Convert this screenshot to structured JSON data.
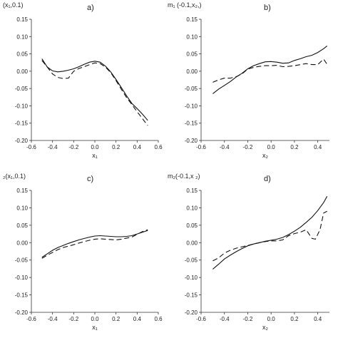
{
  "chart_data": [
    {
      "type": "line",
      "panel_tag": "a)",
      "title": "(x₁,0.1)",
      "xlabel": "x₁",
      "ylabel": "",
      "xlim": [
        -0.6,
        0.6
      ],
      "ylim": [
        -0.2,
        0.15
      ],
      "xticks": [
        "-0.6",
        "-0.4",
        "-0.2",
        "0.0",
        "0.2",
        "0.4",
        "0.6"
      ],
      "yticks": [
        "0.15",
        "0.10",
        "0.05",
        "0.00",
        "-0.05",
        "-0.10",
        "-0.15",
        "-0.20"
      ],
      "grid": false,
      "series": [
        {
          "style": "solid",
          "x": [
            -0.5,
            -0.45,
            -0.4,
            -0.35,
            -0.3,
            -0.25,
            -0.2,
            -0.15,
            -0.1,
            -0.05,
            0.0,
            0.05,
            0.1,
            0.15,
            0.2,
            0.25,
            0.3,
            0.35,
            0.4,
            0.45,
            0.5
          ],
          "y": [
            0.036,
            0.012,
            0.001,
            -0.002,
            0.0,
            0.003,
            0.007,
            0.013,
            0.02,
            0.026,
            0.029,
            0.026,
            0.015,
            -0.002,
            -0.024,
            -0.047,
            -0.071,
            -0.093,
            -0.108,
            -0.124,
            -0.142
          ]
        },
        {
          "style": "dashed",
          "x": [
            -0.5,
            -0.45,
            -0.4,
            -0.35,
            -0.3,
            -0.25,
            -0.2,
            -0.15,
            -0.1,
            -0.05,
            0.0,
            0.05,
            0.1,
            0.15,
            0.2,
            0.25,
            0.3,
            0.35,
            0.4,
            0.45,
            0.5
          ],
          "y": [
            0.031,
            0.012,
            -0.008,
            -0.018,
            -0.021,
            -0.02,
            0.0,
            0.008,
            0.013,
            0.019,
            0.024,
            0.022,
            0.012,
            -0.004,
            -0.027,
            -0.052,
            -0.076,
            -0.096,
            -0.117,
            -0.137,
            -0.157
          ]
        }
      ]
    },
    {
      "type": "line",
      "panel_tag": "b)",
      "title": "m₁ (-0.1,x₂,)",
      "xlabel": "x₂",
      "ylabel": "",
      "xlim": [
        -0.6,
        0.5
      ],
      "ylim": [
        -0.2,
        0.15
      ],
      "xticks": [
        "-0.6",
        "-0.4",
        "-0.2",
        "0.0",
        "0.2",
        "0.4"
      ],
      "yticks": [
        "0.15",
        "0.10",
        "0.05",
        "0.00",
        "-0.05",
        "-0.10",
        "-0.15",
        "-0.20"
      ],
      "grid": false,
      "series": [
        {
          "style": "solid",
          "x": [
            -0.5,
            -0.45,
            -0.4,
            -0.35,
            -0.3,
            -0.25,
            -0.2,
            -0.15,
            -0.1,
            -0.05,
            0.0,
            0.05,
            0.1,
            0.15,
            0.2,
            0.25,
            0.3,
            0.35,
            0.4,
            0.45,
            0.48
          ],
          "y": [
            -0.065,
            -0.052,
            -0.041,
            -0.03,
            -0.017,
            -0.006,
            0.007,
            0.016,
            0.022,
            0.027,
            0.028,
            0.026,
            0.023,
            0.024,
            0.031,
            0.036,
            0.042,
            0.046,
            0.054,
            0.065,
            0.073
          ]
        },
        {
          "style": "dashed",
          "x": [
            -0.5,
            -0.45,
            -0.4,
            -0.35,
            -0.3,
            -0.25,
            -0.2,
            -0.15,
            -0.1,
            -0.05,
            0.0,
            0.05,
            0.1,
            0.15,
            0.2,
            0.25,
            0.3,
            0.35,
            0.4,
            0.45,
            0.48
          ],
          "y": [
            -0.032,
            -0.025,
            -0.02,
            -0.02,
            -0.016,
            -0.008,
            0.006,
            0.011,
            0.014,
            0.016,
            0.016,
            0.017,
            0.013,
            0.014,
            0.016,
            0.019,
            0.022,
            0.019,
            0.019,
            0.035,
            0.02
          ]
        }
      ]
    },
    {
      "type": "line",
      "panel_tag": "c)",
      "title": "₂(x₁,0.1)",
      "xlabel": "x₁",
      "ylabel": "",
      "xlim": [
        -0.6,
        0.6
      ],
      "ylim": [
        -0.2,
        0.15
      ],
      "xticks": [
        "-0.6",
        "-0.4",
        "-0.2",
        "0.0",
        "0.2",
        "0.4",
        "0.6"
      ],
      "yticks": [
        "0.15",
        "0.10",
        "0.05",
        "0.00",
        "-0.05",
        "-0.10",
        "-0.15",
        "-0.20"
      ],
      "grid": false,
      "series": [
        {
          "style": "solid",
          "x": [
            -0.5,
            -0.45,
            -0.4,
            -0.35,
            -0.3,
            -0.25,
            -0.2,
            -0.15,
            -0.1,
            -0.05,
            0.0,
            0.05,
            0.1,
            0.15,
            0.2,
            0.25,
            0.3,
            0.35,
            0.4,
            0.45,
            0.5
          ],
          "y": [
            -0.042,
            -0.032,
            -0.022,
            -0.014,
            -0.008,
            -0.002,
            0.003,
            0.008,
            0.012,
            0.016,
            0.019,
            0.02,
            0.019,
            0.018,
            0.017,
            0.017,
            0.018,
            0.02,
            0.025,
            0.03,
            0.035
          ]
        },
        {
          "style": "dashed",
          "x": [
            -0.5,
            -0.45,
            -0.4,
            -0.35,
            -0.3,
            -0.25,
            -0.2,
            -0.15,
            -0.1,
            -0.05,
            0.0,
            0.05,
            0.1,
            0.15,
            0.2,
            0.25,
            0.3,
            0.35,
            0.4,
            0.45,
            0.5
          ],
          "y": [
            -0.045,
            -0.036,
            -0.028,
            -0.02,
            -0.014,
            -0.01,
            -0.006,
            -0.001,
            0.003,
            0.007,
            0.01,
            0.011,
            0.01,
            0.009,
            0.008,
            0.01,
            0.013,
            0.016,
            0.024,
            0.032,
            0.037
          ]
        }
      ]
    },
    {
      "type": "line",
      "panel_tag": "d)",
      "title": "m₂(-0.1,x ₂)",
      "xlabel": "x₂",
      "ylabel": "",
      "xlim": [
        -0.6,
        0.5
      ],
      "ylim": [
        -0.2,
        0.15
      ],
      "xticks": [
        "-0.6",
        "-0.4",
        "-0.2",
        "0.0",
        "0.2",
        "0.4"
      ],
      "yticks": [
        "0.15",
        "0.10",
        "0.05",
        "0.00",
        "-0.05",
        "-0.10",
        "-0.15",
        "-0.20"
      ],
      "grid": false,
      "series": [
        {
          "style": "solid",
          "x": [
            -0.5,
            -0.45,
            -0.4,
            -0.35,
            -0.3,
            -0.25,
            -0.2,
            -0.15,
            -0.1,
            -0.05,
            0.0,
            0.05,
            0.1,
            0.15,
            0.2,
            0.25,
            0.3,
            0.35,
            0.4,
            0.45,
            0.48
          ],
          "y": [
            -0.076,
            -0.062,
            -0.047,
            -0.036,
            -0.026,
            -0.017,
            -0.009,
            -0.004,
            0.0,
            0.004,
            0.007,
            0.01,
            0.015,
            0.023,
            0.033,
            0.044,
            0.058,
            0.073,
            0.092,
            0.115,
            0.133
          ]
        },
        {
          "style": "dashed",
          "x": [
            -0.5,
            -0.45,
            -0.4,
            -0.35,
            -0.3,
            -0.25,
            -0.2,
            -0.15,
            -0.1,
            -0.05,
            0.0,
            0.05,
            0.1,
            0.15,
            0.2,
            0.25,
            0.3,
            0.35,
            0.38,
            0.42,
            0.45,
            0.48
          ],
          "y": [
            -0.052,
            -0.044,
            -0.03,
            -0.022,
            -0.016,
            -0.012,
            -0.008,
            -0.004,
            0.0,
            0.003,
            0.005,
            0.005,
            0.008,
            0.02,
            0.026,
            0.03,
            0.037,
            0.012,
            0.01,
            0.038,
            0.085,
            0.09
          ]
        }
      ]
    }
  ]
}
